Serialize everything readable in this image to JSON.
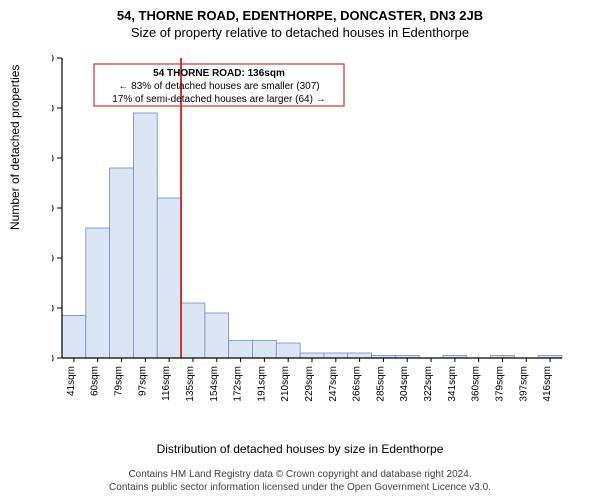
{
  "title_line1": "54, THORNE ROAD, EDENTHORPE, DONCASTER, DN3 2JB",
  "title_line2": "Size of property relative to detached houses in Edenthorpe",
  "ylabel": "Number of detached properties",
  "xlabel": "Distribution of detached houses by size in Edenthorpe",
  "footer_line1": "Contains HM Land Registry data © Crown copyright and database right 2024.",
  "footer_line2": "Contains public sector information licensed under the Open Government Licence v3.0.",
  "chart": {
    "type": "histogram",
    "y_ticks": [
      0,
      20,
      40,
      60,
      80,
      100,
      120
    ],
    "ylim": [
      0,
      120
    ],
    "x_labels": [
      "41sqm",
      "60sqm",
      "79sqm",
      "97sqm",
      "116sqm",
      "135sqm",
      "154sqm",
      "172sqm",
      "191sqm",
      "210sqm",
      "229sqm",
      "247sqm",
      "266sqm",
      "285sqm",
      "304sqm",
      "322sqm",
      "341sqm",
      "360sqm",
      "379sqm",
      "397sqm",
      "416sqm"
    ],
    "values": [
      17,
      52,
      76,
      98,
      64,
      22,
      18,
      7,
      7,
      6,
      2,
      2,
      2,
      1,
      1,
      0,
      1,
      0,
      1,
      0,
      1
    ],
    "bar_fill": "#dbe5f4",
    "bar_stroke": "#6a8ecb",
    "axis_color": "#000000",
    "background": "#ffffff",
    "marker_x_index": 5,
    "marker_color": "#cc3333"
  },
  "annotation": {
    "line1": "54 THORNE ROAD: 136sqm",
    "line2": "← 83% of detached houses are smaller (307)",
    "line3": "17% of semi-detached houses are larger (64) →",
    "box_color": "#cc3333"
  }
}
